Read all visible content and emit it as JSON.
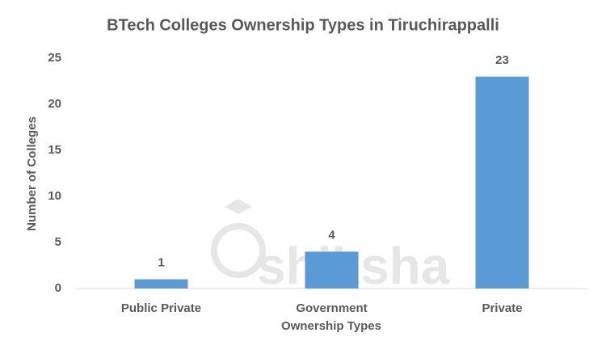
{
  "chart_data": {
    "type": "bar",
    "title": "BTech Colleges Ownership Types in Tiruchirappalli",
    "x_label": "Ownership Types",
    "y_label": "Number of Colleges",
    "categories": [
      "Public Private",
      "Government",
      "Private"
    ],
    "values": [
      1,
      4,
      23
    ],
    "color": "#5b9bd5",
    "ylim": [
      0,
      25
    ],
    "yticks": [
      0,
      5,
      10,
      15,
      20,
      25
    ],
    "grid": false,
    "watermark": "shiksha"
  }
}
